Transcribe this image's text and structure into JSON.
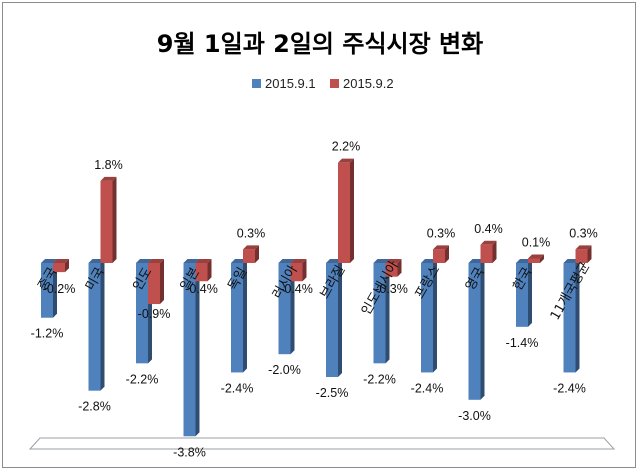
{
  "chart_data": {
    "type": "bar",
    "title": "9월 1일과 2일의 주식시장 변화",
    "categories": [
      "중국",
      "미국",
      "인도",
      "일본",
      "독일",
      "러시아",
      "브라질",
      "인도네시아",
      "프랑스",
      "영국",
      "한국",
      "11개국평균"
    ],
    "series": [
      {
        "name": "2015.9.1",
        "values": [
          -1.2,
          -2.8,
          -2.2,
          -3.8,
          -2.4,
          -2.0,
          -2.5,
          -2.2,
          -2.4,
          -3.0,
          -1.4,
          -2.4
        ],
        "labels": [
          "-1.2%",
          "-2.8%",
          "-2.2%",
          "-3.8%",
          "-2.4%",
          "-2.0%",
          "-2.5%",
          "-2.2%",
          "-2.4%",
          "-3.0%",
          "-1.4%",
          "-2.4%"
        ],
        "color": "#4f81bd"
      },
      {
        "name": "2015.9.2",
        "values": [
          -0.2,
          1.8,
          -0.9,
          -0.4,
          0.3,
          -0.4,
          2.2,
          -0.3,
          0.3,
          0.4,
          0.1,
          0.3
        ],
        "labels": [
          "-0.2%",
          "1.8%",
          "-0.9%",
          "-0.4%",
          "0.3%",
          "-0.4%",
          "2.2%",
          "-0.3%",
          "0.3%",
          "0.4%",
          "0.1%",
          "0.3%"
        ],
        "color": "#c0504d"
      }
    ],
    "legend_position": "top",
    "grid": false,
    "ylim": [
      -3.8,
      2.4
    ]
  }
}
